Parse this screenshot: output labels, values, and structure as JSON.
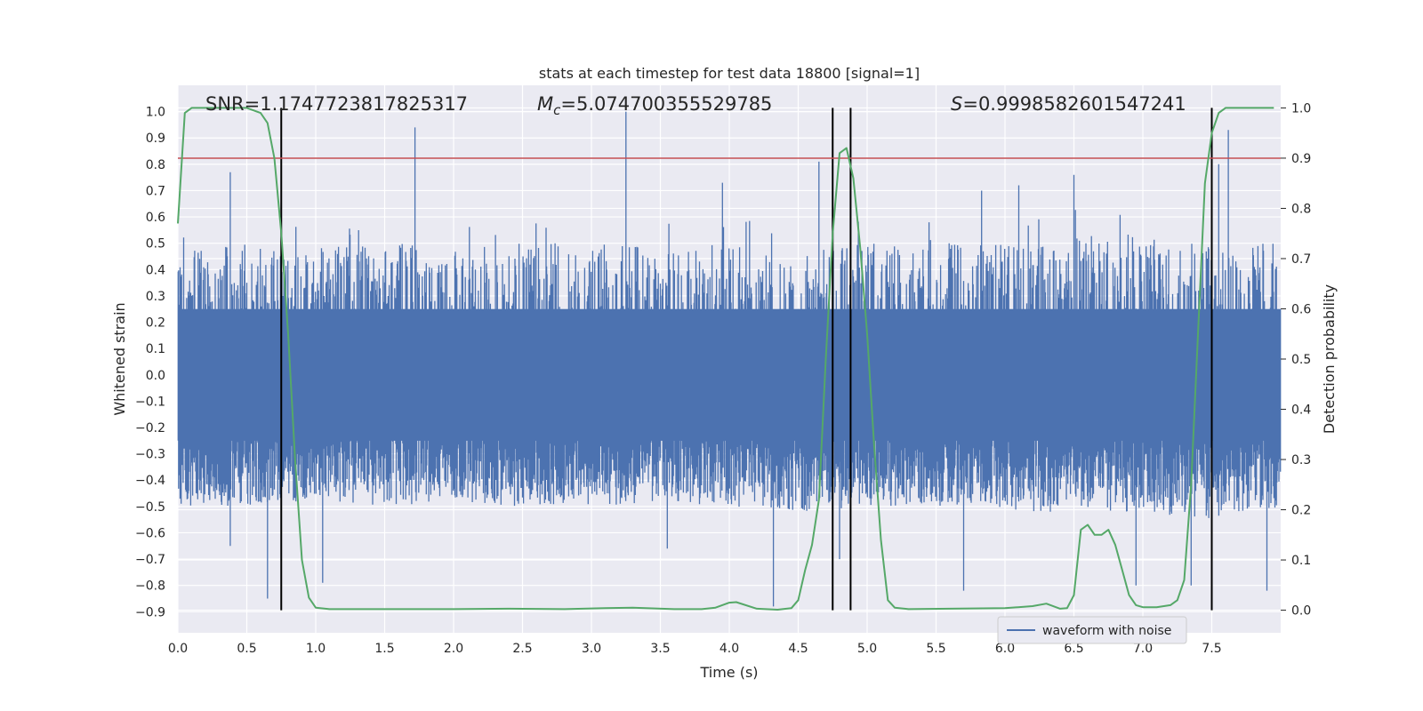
{
  "chart_data": {
    "type": "line",
    "title": "stats at each timestep for test data 18800 [signal=1]",
    "xlabel": "Time (s)",
    "ylabel": "Whitened strain",
    "y2label": "Detection probability",
    "xlim": [
      0,
      8
    ],
    "ylim": [
      -0.98,
      1.1
    ],
    "y2lim": [
      -0.045,
      1.045
    ],
    "x_ticks": [
      "0.0",
      "0.5",
      "1.0",
      "1.5",
      "2.0",
      "2.5",
      "3.0",
      "3.5",
      "4.0",
      "4.5",
      "5.0",
      "5.5",
      "6.0",
      "6.5",
      "7.0",
      "7.5"
    ],
    "y_ticks": [
      "-0.9",
      "-0.8",
      "-0.7",
      "-0.6",
      "-0.5",
      "-0.4",
      "-0.3",
      "-0.2",
      "-0.1",
      "0.0",
      "0.1",
      "0.2",
      "0.3",
      "0.4",
      "0.5",
      "0.6",
      "0.7",
      "0.8",
      "0.9",
      "1.0"
    ],
    "y2_ticks": [
      "0.0",
      "0.1",
      "0.2",
      "0.3",
      "0.4",
      "0.5",
      "0.6",
      "0.7",
      "0.8",
      "0.9",
      "1.0"
    ],
    "grid": true,
    "legend_position": "bottom-right",
    "colors": {
      "waveform": "#4c72b0",
      "probability": "#55a868",
      "threshold": "#c44e52",
      "markers": "#000000"
    },
    "annotations": {
      "snr": "SNR=1.1747723817825317",
      "mc_symbol": "M",
      "mc_sub": "c",
      "mc_value": "=5.074700355529785",
      "s_symbol": "S",
      "s_value": "=0.9998582601547241"
    },
    "series": [
      {
        "name": "waveform with noise",
        "axis": "left",
        "style": "dense-noise",
        "envelope": {
          "x": [
            0.0,
            0.5,
            1.0,
            1.5,
            2.0,
            2.5,
            3.0,
            3.5,
            4.0,
            4.5,
            5.0,
            5.5,
            6.0,
            6.5,
            7.0,
            7.5,
            8.0
          ],
          "upper": [
            0.48,
            0.5,
            0.48,
            0.5,
            0.48,
            0.5,
            0.5,
            0.48,
            0.5,
            0.5,
            0.5,
            0.5,
            0.52,
            0.52,
            0.52,
            0.5,
            0.5
          ],
          "lower": [
            -0.5,
            -0.5,
            -0.48,
            -0.5,
            -0.48,
            -0.5,
            -0.5,
            -0.48,
            -0.5,
            -0.52,
            -0.5,
            -0.5,
            -0.52,
            -0.52,
            -0.52,
            -0.55,
            -0.5
          ]
        },
        "spikes": [
          {
            "x": 0.38,
            "y": 0.77
          },
          {
            "x": 1.72,
            "y": 0.94
          },
          {
            "x": 3.25,
            "y": 1.0
          },
          {
            "x": 4.65,
            "y": 0.81
          },
          {
            "x": 6.5,
            "y": 0.76
          },
          {
            "x": 7.62,
            "y": 0.93
          },
          {
            "x": 7.55,
            "y": 0.8
          },
          {
            "x": 3.95,
            "y": 0.73
          },
          {
            "x": 5.83,
            "y": 0.7
          },
          {
            "x": 6.1,
            "y": 0.72
          },
          {
            "x": 0.65,
            "y": -0.85
          },
          {
            "x": 1.05,
            "y": -0.79
          },
          {
            "x": 4.32,
            "y": -0.88
          },
          {
            "x": 5.7,
            "y": -0.82
          },
          {
            "x": 7.35,
            "y": -0.8
          },
          {
            "x": 7.9,
            "y": -0.82
          },
          {
            "x": 3.55,
            "y": -0.66
          },
          {
            "x": 0.38,
            "y": -0.65
          },
          {
            "x": 6.95,
            "y": -0.8
          },
          {
            "x": 4.8,
            "y": -0.7
          }
        ]
      },
      {
        "name": "detection probability",
        "axis": "right",
        "x": [
          0.0,
          0.05,
          0.1,
          0.15,
          0.2,
          0.3,
          0.4,
          0.5,
          0.6,
          0.65,
          0.7,
          0.75,
          0.8,
          0.85,
          0.9,
          0.95,
          1.0,
          1.1,
          1.3,
          1.6,
          2.0,
          2.4,
          2.8,
          3.1,
          3.3,
          3.6,
          3.8,
          3.9,
          4.0,
          4.05,
          4.2,
          4.35,
          4.45,
          4.5,
          4.55,
          4.6,
          4.65,
          4.7,
          4.75,
          4.8,
          4.85,
          4.9,
          4.95,
          5.0,
          5.05,
          5.1,
          5.15,
          5.2,
          5.3,
          5.6,
          6.0,
          6.2,
          6.3,
          6.4,
          6.45,
          6.5,
          6.55,
          6.6,
          6.65,
          6.7,
          6.75,
          6.8,
          6.85,
          6.9,
          6.95,
          7.0,
          7.1,
          7.2,
          7.25,
          7.3,
          7.35,
          7.4,
          7.45,
          7.5,
          7.55,
          7.6,
          7.7,
          7.8,
          7.95
        ],
        "values": [
          0.77,
          0.99,
          1.0,
          1.0,
          1.0,
          1.0,
          1.0,
          1.0,
          0.99,
          0.97,
          0.9,
          0.75,
          0.55,
          0.3,
          0.1,
          0.025,
          0.005,
          0.002,
          0.002,
          0.002,
          0.002,
          0.003,
          0.002,
          0.004,
          0.005,
          0.002,
          0.002,
          0.005,
          0.015,
          0.016,
          0.003,
          0.001,
          0.004,
          0.02,
          0.08,
          0.13,
          0.22,
          0.5,
          0.75,
          0.91,
          0.92,
          0.86,
          0.72,
          0.55,
          0.33,
          0.14,
          0.02,
          0.005,
          0.002,
          0.003,
          0.004,
          0.008,
          0.013,
          0.003,
          0.004,
          0.03,
          0.16,
          0.17,
          0.15,
          0.15,
          0.16,
          0.13,
          0.08,
          0.03,
          0.01,
          0.006,
          0.006,
          0.01,
          0.02,
          0.06,
          0.25,
          0.55,
          0.85,
          0.95,
          0.99,
          1.0,
          1.0,
          1.0,
          1.0
        ]
      },
      {
        "name": "threshold",
        "axis": "right",
        "values": [
          0.9,
          0.9
        ]
      }
    ],
    "vertical_lines": [
      0.75,
      4.75,
      4.88,
      7.5
    ]
  },
  "legend": {
    "label": "waveform with noise"
  }
}
